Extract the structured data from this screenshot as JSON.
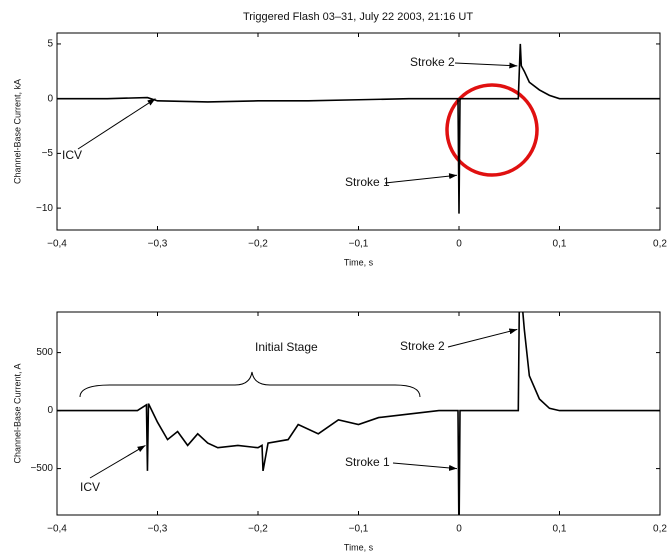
{
  "chart_data": [
    {
      "type": "line",
      "title": "Triggered Flash 03–31, July 22 2003, 21:16 UT",
      "ylabel": "Channel-Base Current, kA",
      "xlabel": "Time, s",
      "color": "#000000",
      "x": [
        -0.4,
        -0.35,
        -0.31,
        -0.3,
        -0.25,
        -0.2,
        -0.15,
        -0.1,
        -0.05,
        -0.001,
        0,
        0.001,
        0.01,
        0.059,
        0.06,
        0.061,
        0.062,
        0.065,
        0.07,
        0.08,
        0.09,
        0.1,
        0.15,
        0.2
      ],
      "values": [
        0,
        0,
        0.1,
        -0.2,
        -0.3,
        -0.2,
        -0.2,
        -0.1,
        0,
        0,
        -10.5,
        0,
        0,
        0,
        2.5,
        5,
        3,
        2.5,
        1.5,
        0.8,
        0.3,
        0,
        0,
        0
      ],
      "xlim": [
        -0.4,
        0.2
      ],
      "xticks": [
        {
          "value": -0.4,
          "label": "−0,4"
        },
        {
          "value": -0.3,
          "label": "−0,3"
        },
        {
          "value": -0.2,
          "label": "−0,2"
        },
        {
          "value": -0.1,
          "label": "−0,1"
        },
        0,
        {
          "value": 0.1,
          "label": "0,1"
        },
        {
          "value": 0.2,
          "label": "0,2"
        }
      ],
      "ylim": [
        -12,
        6
      ],
      "yticks": [
        5,
        0,
        {
          "value": -5,
          "label": "−5"
        },
        {
          "value": -10,
          "label": "−10"
        }
      ],
      "annotations": [
        {
          "text": "ICV"
        },
        {
          "text": "Stroke 1"
        },
        {
          "text": "Stroke 2"
        }
      ]
    },
    {
      "type": "line",
      "ylabel": "Channel-Base Current, A",
      "xlabel": "Time, s",
      "color": "#000000",
      "x": [
        -0.4,
        -0.32,
        -0.311,
        -0.31,
        -0.309,
        -0.3,
        -0.29,
        -0.28,
        -0.27,
        -0.26,
        -0.25,
        -0.24,
        -0.22,
        -0.2,
        -0.196,
        -0.195,
        -0.19,
        -0.17,
        -0.16,
        -0.14,
        -0.12,
        -0.1,
        -0.08,
        -0.05,
        -0.02,
        -0.001,
        0,
        0.001,
        0.059,
        0.06,
        0.063,
        0.065,
        0.07,
        0.08,
        0.09,
        0.1,
        0.15,
        0.2
      ],
      "values": [
        0,
        0,
        50,
        -520,
        60,
        -100,
        -250,
        -180,
        -300,
        -200,
        -280,
        -320,
        -300,
        -320,
        -300,
        -520,
        -280,
        -250,
        -120,
        -200,
        -80,
        -120,
        -60,
        -30,
        0,
        0,
        -1120,
        0,
        0,
        900,
        900,
        700,
        300,
        100,
        20,
        0,
        0,
        0
      ],
      "xlim": [
        -0.4,
        0.2
      ],
      "xticks": [
        {
          "value": -0.4,
          "label": "−0,4"
        },
        {
          "value": -0.3,
          "label": "−0,3"
        },
        {
          "value": -0.2,
          "label": "−0,2"
        },
        {
          "value": -0.1,
          "label": "−0,1"
        },
        0,
        {
          "value": 0.1,
          "label": "0,1"
        },
        {
          "value": 0.2,
          "label": "0,2"
        }
      ],
      "ylim": [
        -900,
        850
      ],
      "yticks": [
        500,
        0,
        {
          "value": -500,
          "label": "−500"
        }
      ],
      "annotations": [
        {
          "text": "Initial Stage"
        },
        {
          "text": "ICV"
        },
        {
          "text": "Stroke 1"
        },
        {
          "text": "Stroke 2"
        }
      ]
    }
  ]
}
